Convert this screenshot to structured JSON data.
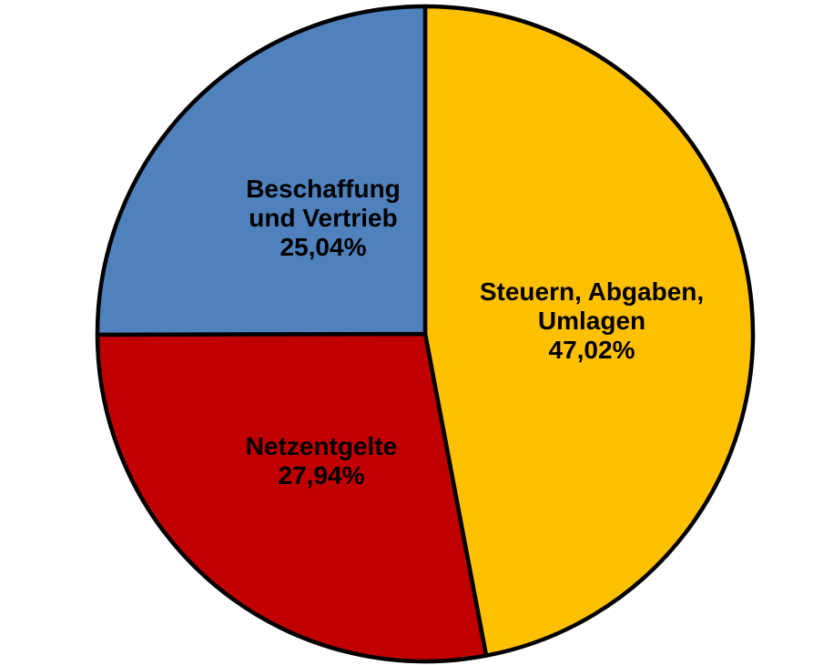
{
  "chart_data": {
    "type": "pie",
    "title": "",
    "start_angle_deg": 0,
    "direction": "clockwise",
    "total": 100,
    "background": "#FFFFFF",
    "stroke_color": "#000000",
    "label_color": "#000000",
    "legend": "none",
    "slices": [
      {
        "name": "Steuern, Abgaben, Umlagen",
        "value": 47.02,
        "percent_label": "47,02%",
        "color": "#FFC000",
        "label_lines": [
          "Steuern, Abgaben,",
          "Umlagen",
          "47,02%"
        ]
      },
      {
        "name": "Netzentgelte",
        "value": 27.94,
        "percent_label": "27,94%",
        "color": "#C00000",
        "label_lines": [
          "Netzentgelte",
          "27,94%"
        ]
      },
      {
        "name": "Beschaffung und Vertrieb",
        "value": 25.04,
        "percent_label": "25,04%",
        "color": "#4F81BD",
        "label_lines": [
          "Beschaffung",
          "und Vertrieb",
          "25,04%"
        ]
      }
    ]
  }
}
